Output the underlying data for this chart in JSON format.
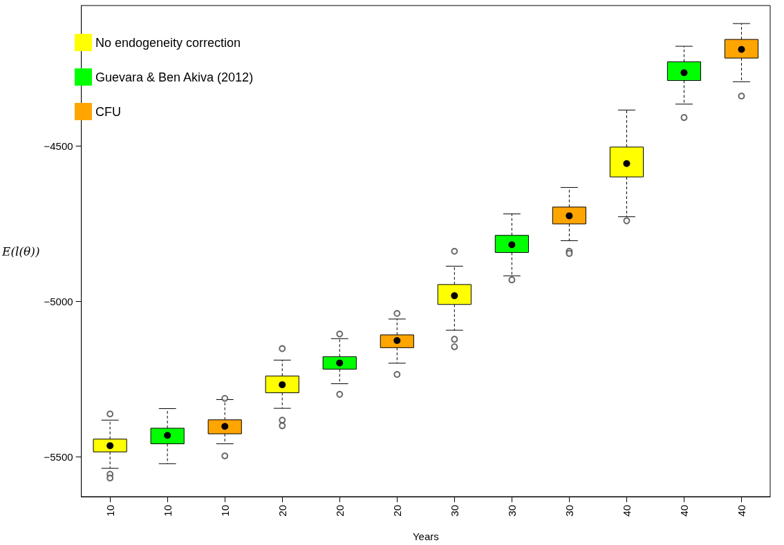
{
  "chart_data": {
    "type": "box",
    "xlabel": "Years",
    "ylabel": "E(l(θ))",
    "categories": [
      "10",
      "10",
      "10",
      "20",
      "20",
      "20",
      "30",
      "30",
      "30",
      "40",
      "40",
      "40"
    ],
    "ylim": [
      -5628,
      -4049
    ],
    "yticks": [
      {
        "value": -5500,
        "label": "−5500"
      },
      {
        "value": -5000,
        "label": "−5000"
      },
      {
        "value": -4500,
        "label": "−4500"
      }
    ],
    "legend": "top left",
    "grid": false,
    "series": [
      {
        "name": "No endogeneity correction",
        "color": "#ffff00",
        "boxes": [
          {
            "low": -5537,
            "q1": -5484,
            "median": -5464,
            "q3": -5443,
            "high": -5382,
            "outliers": [
              -5362,
              -5556,
              -5568
            ]
          },
          null,
          null,
          {
            "low": -5344,
            "q1": -5294,
            "median": -5268,
            "q3": -5240,
            "high": -5189,
            "outliers": [
              -5152,
              -5382,
              -5400
            ]
          },
          null,
          null,
          {
            "low": -5093,
            "q1": -5010,
            "median": -4982,
            "q3": -4946,
            "high": -4887,
            "outliers": [
              -4839,
              -5122,
              -5146
            ]
          },
          null,
          null,
          {
            "low": -4728,
            "q1": -4600,
            "median": -4557,
            "q3": -4504,
            "high": -4385,
            "outliers": [
              -4741
            ]
          },
          null,
          null
        ]
      },
      {
        "name": "Guevara & Ben Akiva (2012)",
        "color": "#00ff00",
        "boxes": [
          null,
          {
            "low": -5522,
            "q1": -5458,
            "median": -5431,
            "q3": -5408,
            "high": -5345
          },
          null,
          null,
          {
            "low": -5265,
            "q1": -5218,
            "median": -5198,
            "q3": -5178,
            "high": -5120,
            "outliers": [
              -5105,
              -5299
            ]
          },
          null,
          null,
          {
            "low": -4918,
            "q1": -4843,
            "median": -4818,
            "q3": -4788,
            "high": -4719,
            "outliers": [
              -4931
            ]
          },
          null,
          null,
          {
            "low": -4366,
            "q1": -4290,
            "median": -4265,
            "q3": -4230,
            "high": -4180,
            "outliers": [
              -4409
            ]
          },
          null
        ]
      },
      {
        "name": "CFU",
        "color": "#ffa500",
        "boxes": [
          null,
          null,
          {
            "low": -5458,
            "q1": -5426,
            "median": -5402,
            "q3": -5381,
            "high": -5316,
            "outliers": [
              -5312,
              -5497
            ]
          },
          null,
          null,
          {
            "low": -5199,
            "q1": -5149,
            "median": -5126,
            "q3": -5108,
            "high": -5057,
            "outliers": [
              -5039,
              -5235
            ]
          },
          null,
          null,
          {
            "low": -4805,
            "q1": -4751,
            "median": -4725,
            "q3": -4697,
            "high": -4634,
            "outliers": [
              -4839,
              -4846
            ]
          },
          null,
          null,
          {
            "low": -4294,
            "q1": -4218,
            "median": -4190,
            "q3": -4158,
            "high": -4107,
            "outliers": [
              -4340
            ]
          }
        ]
      }
    ]
  }
}
